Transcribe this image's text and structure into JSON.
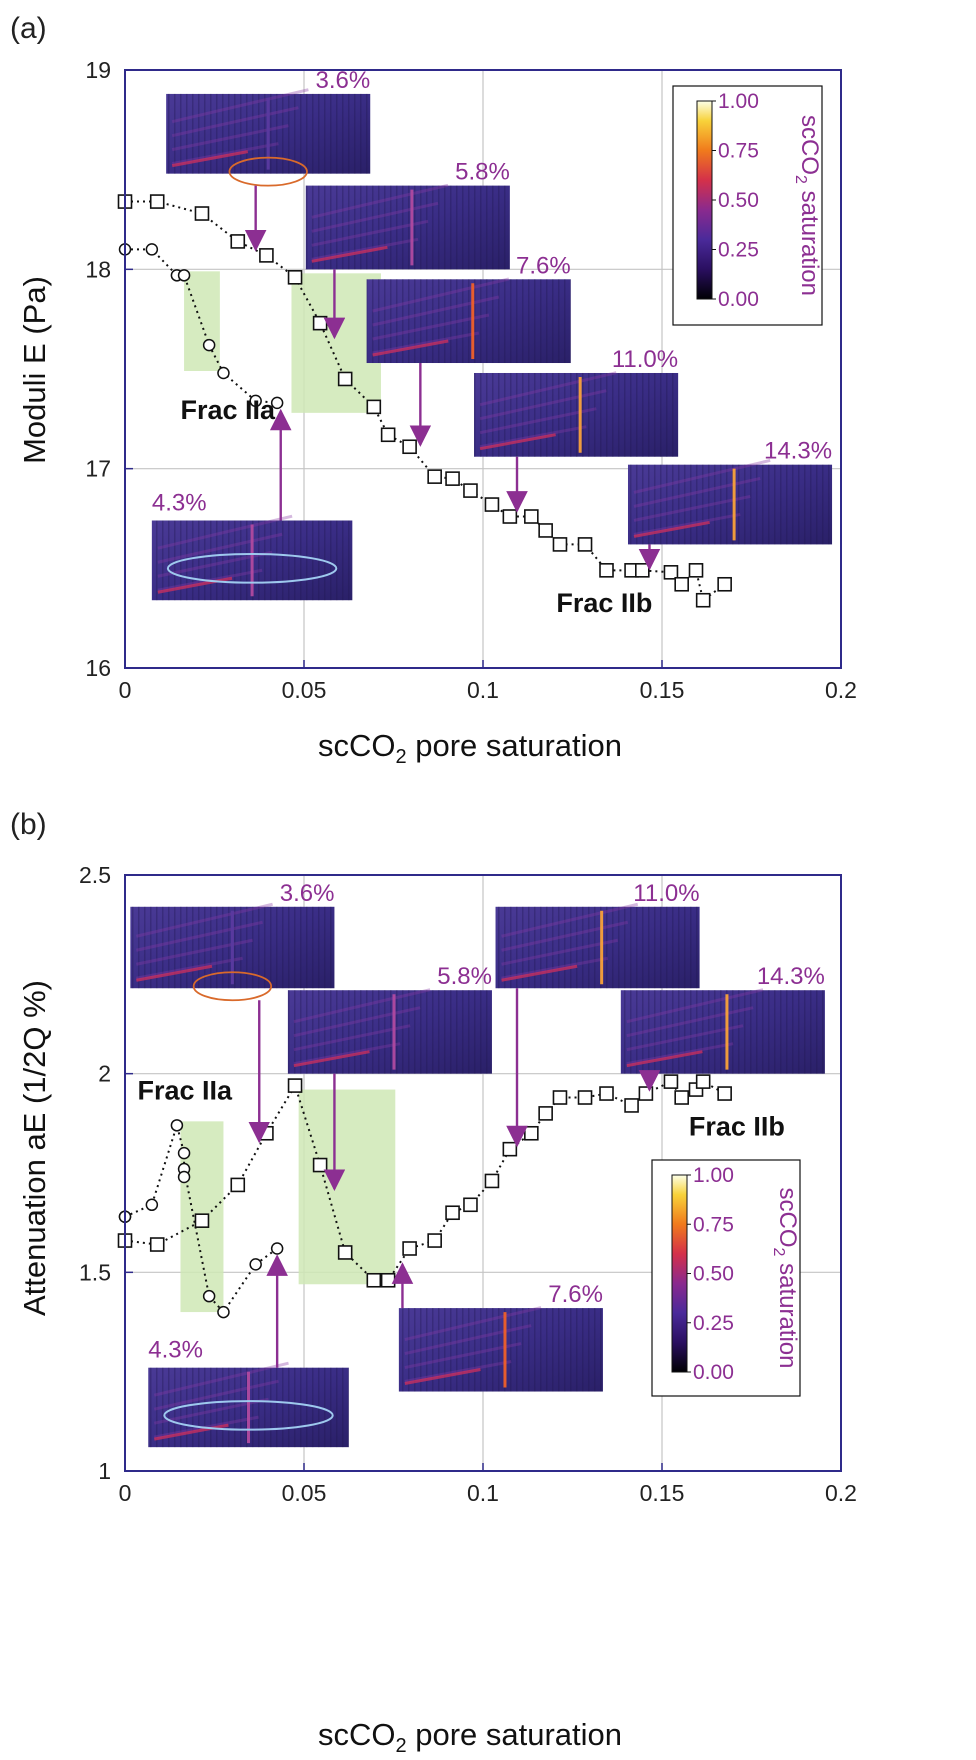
{
  "colors": {
    "axis": "#2f2a8a",
    "grid": "#c4c4c4",
    "marker": "#111111",
    "annotation": "#8c2f92",
    "shade": "#cfe7b5",
    "ellipse_red": "#d96a2b",
    "ellipse_blue": "#9ec9ee"
  },
  "chart_data": [
    {
      "type": "scatter",
      "panel": "(a)",
      "xlabel_pre": "scCO",
      "xlabel_sub": "2",
      "xlabel_post": " pore saturation",
      "ylabel": "Moduli E (Pa)",
      "xlim": [
        0,
        0.2
      ],
      "ylim": [
        16,
        19
      ],
      "xticks": [
        "0",
        "0.05",
        "0.1",
        "0.15",
        "0.2"
      ],
      "xtick_values": [
        0,
        0.05,
        0.1,
        0.15,
        0.2
      ],
      "yticks": [
        "16",
        "17",
        "18",
        "19"
      ],
      "ytick_values": [
        16,
        17,
        18,
        19
      ],
      "grid": true,
      "series": [
        {
          "name": "Frac IIa",
          "marker": "circle",
          "x": [
            0.0,
            0.0075,
            0.0145,
            0.0165,
            0.0235,
            0.0275,
            0.0365,
            0.0425
          ],
          "y": [
            18.1,
            18.1,
            17.97,
            17.97,
            17.62,
            17.48,
            17.34,
            17.33
          ]
        },
        {
          "name": "Frac IIb",
          "marker": "square",
          "x": [
            0.0,
            0.009,
            0.0215,
            0.0315,
            0.0395,
            0.0475,
            0.0545,
            0.0615,
            0.0695,
            0.0735,
            0.0795,
            0.0865,
            0.0915,
            0.0965,
            0.1025,
            0.1075,
            0.1135,
            0.1175,
            0.1215,
            0.1285,
            0.1345,
            0.1415,
            0.1445,
            0.1525,
            0.1555,
            0.1595,
            0.1615,
            0.1675
          ],
          "y": [
            18.34,
            18.34,
            18.28,
            18.14,
            18.07,
            17.96,
            17.73,
            17.45,
            17.31,
            17.17,
            17.11,
            16.96,
            16.95,
            16.89,
            16.82,
            16.76,
            16.76,
            16.69,
            16.62,
            16.62,
            16.49,
            16.49,
            16.49,
            16.48,
            16.42,
            16.49,
            16.34,
            16.42
          ]
        }
      ],
      "annotations": [
        {
          "text": "Frac IIa",
          "x": 0.0155,
          "y": 17.25
        },
        {
          "text": "Frac IIb",
          "x": 0.1205,
          "y": 16.28
        }
      ],
      "shaded_regions": [
        {
          "x0": 0.0165,
          "x1": 0.0265,
          "y0": 17.49,
          "y1": 17.99
        },
        {
          "x0": 0.0465,
          "x1": 0.0715,
          "y0": 17.28,
          "y1": 17.98
        }
      ],
      "insets": [
        {
          "label": "3.6%",
          "x0": 0.0115,
          "x1": 0.0685,
          "y0": 18.48,
          "y1": 18.88,
          "target_x": 0.0365,
          "target_y": 18.1,
          "ellipse": "red"
        },
        {
          "label": "5.8%",
          "x0": 0.0505,
          "x1": 0.1075,
          "y0": 18.0,
          "y1": 18.42,
          "target_x": 0.0585,
          "target_y": 17.66
        },
        {
          "label": "7.6%",
          "x0": 0.0675,
          "x1": 0.1245,
          "y0": 17.53,
          "y1": 17.95,
          "target_x": 0.0825,
          "target_y": 17.12
        },
        {
          "label": "11.0%",
          "x0": 0.0975,
          "x1": 0.1545,
          "y0": 17.06,
          "y1": 17.48,
          "target_x": 0.1095,
          "target_y": 16.79
        },
        {
          "label": "14.3%",
          "x0": 0.1405,
          "x1": 0.1975,
          "y0": 16.62,
          "y1": 17.02,
          "target_x": 0.1465,
          "target_y": 16.5
        },
        {
          "label": "4.3%",
          "x0": 0.0075,
          "x1": 0.0635,
          "y0": 16.34,
          "y1": 16.74,
          "target_x": 0.0435,
          "target_y": 17.29,
          "ellipse": "blue",
          "arrow": "up"
        }
      ],
      "colorbar": {
        "ticks": [
          "1.00",
          "0.75",
          "0.50",
          "0.25",
          "0.00"
        ],
        "title_pre": "scCO",
        "title_sub": "2",
        "title_post": " saturation",
        "place": "top-right"
      }
    },
    {
      "type": "scatter",
      "panel": "(b)",
      "xlabel_pre": "scCO",
      "xlabel_sub": "2",
      "xlabel_post": " pore saturation",
      "ylabel": "Attenuation aE (1/2Q %)",
      "xlim": [
        0,
        0.2
      ],
      "ylim": [
        1,
        2.5
      ],
      "xticks": [
        "0",
        "0.05",
        "0.1",
        "0.15",
        "0.2"
      ],
      "xtick_values": [
        0,
        0.05,
        0.1,
        0.15,
        0.2
      ],
      "yticks": [
        "1",
        "1.5",
        "2",
        "2.5"
      ],
      "ytick_values": [
        1,
        1.5,
        2,
        2.5
      ],
      "grid": true,
      "series": [
        {
          "name": "Frac IIa",
          "marker": "circle",
          "x": [
            0.0,
            0.0,
            0.0075,
            0.0145,
            0.0165,
            0.0165,
            0.0165,
            0.0235,
            0.0275,
            0.0365,
            0.0425
          ],
          "y": [
            1.64,
            1.64,
            1.67,
            1.87,
            1.8,
            1.76,
            1.74,
            1.44,
            1.4,
            1.52,
            1.56
          ],
          "path_x": [
            0.0,
            0.0075,
            0.0145,
            0.0165,
            0.0165,
            0.0235,
            0.0275,
            0.0365,
            0.0425
          ],
          "path_y": [
            1.64,
            1.67,
            1.87,
            1.8,
            1.76,
            1.44,
            1.4,
            1.52,
            1.56
          ]
        },
        {
          "name": "Frac IIb",
          "marker": "square",
          "x": [
            0.0,
            0.009,
            0.0215,
            0.0315,
            0.0395,
            0.0475,
            0.0545,
            0.0615,
            0.0695,
            0.0735,
            0.0795,
            0.0865,
            0.0915,
            0.0965,
            0.1025,
            0.1075,
            0.1135,
            0.1175,
            0.1215,
            0.1285,
            0.1345,
            0.1415,
            0.1455,
            0.1525,
            0.1555,
            0.1595,
            0.1615,
            0.1675
          ],
          "y": [
            1.58,
            1.57,
            1.63,
            1.72,
            1.85,
            1.97,
            1.77,
            1.55,
            1.48,
            1.48,
            1.56,
            1.58,
            1.65,
            1.67,
            1.73,
            1.81,
            1.85,
            1.9,
            1.94,
            1.94,
            1.95,
            1.92,
            1.95,
            1.98,
            1.94,
            1.96,
            1.98,
            1.95
          ]
        }
      ],
      "annotations": [
        {
          "text": "Frac IIa",
          "x": 0.0035,
          "y": 1.935
        },
        {
          "text": "Frac IIb",
          "x": 0.1575,
          "y": 1.845
        }
      ],
      "shaded_regions": [
        {
          "x0": 0.0155,
          "x1": 0.0275,
          "y0": 1.4,
          "y1": 1.88
        },
        {
          "x0": 0.0485,
          "x1": 0.0755,
          "y0": 1.47,
          "y1": 1.96
        }
      ],
      "insets": [
        {
          "label": "3.6%",
          "x0": 0.0015,
          "x1": 0.0585,
          "y0": 2.215,
          "y1": 2.42,
          "target_x": 0.0375,
          "target_y": 1.83,
          "ellipse": "red"
        },
        {
          "label": "5.8%",
          "x0": 0.0455,
          "x1": 0.1025,
          "y0": 2.0,
          "y1": 2.21,
          "target_x": 0.0585,
          "target_y": 1.71
        },
        {
          "label": "11.0%",
          "x0": 0.1035,
          "x1": 0.1605,
          "y0": 2.215,
          "y1": 2.42,
          "target_x": 0.1095,
          "target_y": 1.82
        },
        {
          "label": "14.3%",
          "x0": 0.1385,
          "x1": 0.1955,
          "y0": 2.0,
          "y1": 2.21,
          "target_x": 0.1465,
          "target_y": 1.96
        },
        {
          "label": "7.6%",
          "x0": 0.0765,
          "x1": 0.1335,
          "y0": 1.2,
          "y1": 1.41,
          "target_x": 0.0775,
          "target_y": 1.52,
          "arrow": "up"
        },
        {
          "label": "4.3%",
          "x0": 0.0065,
          "x1": 0.0625,
          "y0": 1.06,
          "y1": 1.26,
          "target_x": 0.0425,
          "target_y": 1.54,
          "ellipse": "blue",
          "arrow": "up"
        }
      ],
      "colorbar": {
        "ticks": [
          "1.00",
          "0.75",
          "0.50",
          "0.25",
          "0.00"
        ],
        "title_pre": "scCO",
        "title_sub": "2",
        "title_post": " saturation",
        "place": "right"
      }
    }
  ]
}
